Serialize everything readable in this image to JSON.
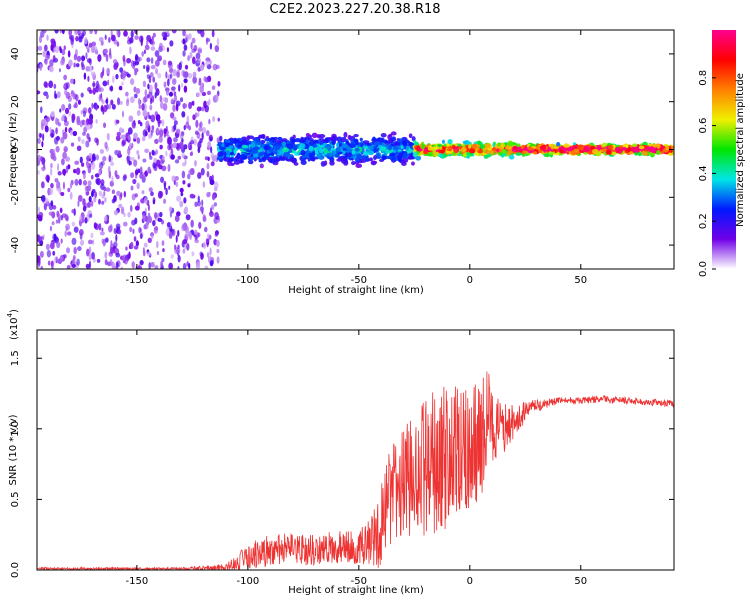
{
  "title": "C2E2.2023.227.20.38.R18",
  "chart_data": [
    {
      "type": "heatmap",
      "xlabel": "Height of straight line (km)",
      "ylabel": "Frequency (Hz)",
      "xlim": [
        -195,
        92
      ],
      "ylim": [
        -50,
        50
      ],
      "xticks": [
        -150,
        -100,
        -50,
        0,
        50
      ],
      "yticks": [
        -40,
        -20,
        0,
        20,
        40
      ],
      "colorbar": {
        "label": "Normalized spectral amplitude",
        "range": [
          0,
          1
        ],
        "ticks": [
          0.0,
          0.2,
          0.4,
          0.6,
          0.8
        ],
        "colors": [
          "#ffffff",
          "#7000e8",
          "#0018ff",
          "#00e6e6",
          "#00e600",
          "#f0f000",
          "#ff8000",
          "#ff0000",
          "#ff0090"
        ]
      },
      "regions": [
        {
          "x": [
            -195,
            -113
          ],
          "freq_halfwidth": 50,
          "amplitude": 0.1
        },
        {
          "x": [
            -113,
            -25
          ],
          "freq_halfwidth": 6,
          "amplitude": 0.3
        },
        {
          "x": [
            -25,
            20
          ],
          "freq_halfwidth": 3,
          "amplitude": 0.7
        },
        {
          "x": [
            20,
            92
          ],
          "freq_halfwidth": 2,
          "amplitude": 0.9
        }
      ]
    },
    {
      "type": "line",
      "xlabel": "Height of straight line (km)",
      "ylabel": "SNR (10 * v/v)",
      "multiplier": "(x10",
      "multiplier_exp": "4",
      "multiplier_close": ")",
      "xlim": [
        -195,
        92
      ],
      "ylim": [
        0,
        1.7
      ],
      "xticks": [
        -150,
        -100,
        -50,
        0,
        50
      ],
      "yticks": [
        0.0,
        0.5,
        1.0,
        1.5
      ],
      "color": "#ee3333",
      "series": [
        {
          "x": [
            -195,
            -160,
            -130,
            -110,
            -105,
            -100,
            -90,
            -80,
            -70,
            -60,
            -50,
            -45,
            -40,
            -35,
            -30,
            -25,
            -20,
            -15,
            -10,
            -5,
            0,
            5,
            8,
            10,
            15,
            20,
            25,
            30,
            35,
            40,
            50,
            60,
            70,
            80,
            92
          ],
          "y": [
            0.01,
            0.01,
            0.01,
            0.02,
            0.05,
            0.1,
            0.14,
            0.15,
            0.14,
            0.16,
            0.16,
            0.2,
            0.3,
            0.55,
            0.6,
            0.68,
            0.72,
            0.75,
            0.8,
            0.8,
            0.88,
            0.9,
            1.1,
            1.0,
            1.0,
            1.05,
            1.12,
            1.16,
            1.18,
            1.2,
            1.2,
            1.21,
            1.2,
            1.19,
            1.18
          ],
          "spread": [
            0.01,
            0.01,
            0.01,
            0.03,
            0.07,
            0.12,
            0.14,
            0.14,
            0.14,
            0.15,
            0.15,
            0.2,
            0.4,
            0.45,
            0.5,
            0.55,
            0.6,
            0.7,
            0.7,
            0.6,
            0.6,
            0.55,
            0.55,
            0.35,
            0.25,
            0.15,
            0.1,
            0.06,
            0.04,
            0.03,
            0.03,
            0.03,
            0.03,
            0.03,
            0.03
          ]
        }
      ]
    }
  ]
}
